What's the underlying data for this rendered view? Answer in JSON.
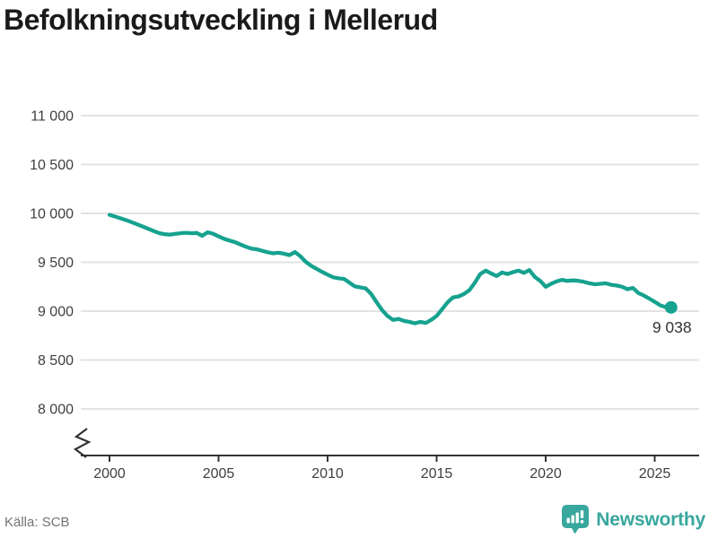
{
  "title": "Befolkningsutveckling i Mellerud",
  "source": "Källa: SCB",
  "logo": {
    "text": "Newsworthy",
    "icon": "bar-chart-speech-bubble"
  },
  "colors": {
    "line": "#16a28f",
    "end_dot": "#16a28f",
    "grid": "#e3e3e3",
    "axis": "#333333",
    "tick_text": "#3f3f3f",
    "end_label_text": "#333333",
    "title_text": "#1a1a1a",
    "source_text": "#737373",
    "logo_teal": "#38a79d",
    "background": "#ffffff"
  },
  "chart_data": {
    "type": "line",
    "title": "Befolkningsutveckling i Mellerud",
    "xlabel": "",
    "ylabel": "",
    "legend": "none",
    "grid": "horizontal-only",
    "axis_break": true,
    "xlim": [
      1998.7,
      2027.1
    ],
    "ylim": [
      8000,
      11000
    ],
    "y_ticks": [
      {
        "value": 8000,
        "label": "8 000"
      },
      {
        "value": 8500,
        "label": "8 500"
      },
      {
        "value": 9000,
        "label": "9 000"
      },
      {
        "value": 9500,
        "label": "9 500"
      },
      {
        "value": 10000,
        "label": "10 000"
      },
      {
        "value": 10500,
        "label": "10 500"
      },
      {
        "value": 11000,
        "label": "11 000"
      }
    ],
    "x_ticks": [
      {
        "value": 2000,
        "label": "2000"
      },
      {
        "value": 2005,
        "label": "2005"
      },
      {
        "value": 2010,
        "label": "2010"
      },
      {
        "value": 2015,
        "label": "2015"
      },
      {
        "value": 2020,
        "label": "2020"
      },
      {
        "value": 2025,
        "label": "2025"
      }
    ],
    "period": "quarterly",
    "end_point_label": "9 038",
    "end_value": 9038,
    "x": [
      2000,
      2000.25,
      2000.5,
      2000.75,
      2001,
      2001.25,
      2001.5,
      2001.75,
      2002,
      2002.25,
      2002.5,
      2002.75,
      2003,
      2003.25,
      2003.5,
      2003.75,
      2004,
      2004.25,
      2004.5,
      2004.75,
      2005,
      2005.25,
      2005.5,
      2005.75,
      2006,
      2006.25,
      2006.5,
      2006.75,
      2007,
      2007.25,
      2007.5,
      2007.75,
      2008,
      2008.25,
      2008.5,
      2008.75,
      2009,
      2009.25,
      2009.5,
      2009.75,
      2010,
      2010.25,
      2010.5,
      2010.75,
      2011,
      2011.25,
      2011.5,
      2011.75,
      2012,
      2012.25,
      2012.5,
      2012.75,
      2013,
      2013.25,
      2013.5,
      2013.75,
      2014,
      2014.25,
      2014.5,
      2014.75,
      2015,
      2015.25,
      2015.5,
      2015.75,
      2016,
      2016.25,
      2016.5,
      2016.75,
      2017,
      2017.25,
      2017.5,
      2017.75,
      2018,
      2018.25,
      2018.5,
      2018.75,
      2019,
      2019.25,
      2019.5,
      2019.75,
      2020,
      2020.25,
      2020.5,
      2020.75,
      2021,
      2021.25,
      2021.5,
      2021.75,
      2022,
      2022.25,
      2022.5,
      2022.75,
      2023,
      2023.25,
      2023.5,
      2023.75,
      2024,
      2024.25,
      2024.5,
      2024.75,
      2025,
      2025.25,
      2025.5,
      2025.75
    ],
    "values": [
      9985,
      9968,
      9950,
      9932,
      9912,
      9890,
      9868,
      9845,
      9822,
      9800,
      9788,
      9783,
      9790,
      9797,
      9802,
      9797,
      9800,
      9772,
      9806,
      9792,
      9765,
      9740,
      9722,
      9706,
      9683,
      9660,
      9640,
      9633,
      9617,
      9603,
      9592,
      9597,
      9588,
      9573,
      9605,
      9562,
      9505,
      9463,
      9432,
      9402,
      9373,
      9347,
      9336,
      9330,
      9292,
      9253,
      9243,
      9233,
      9175,
      9090,
      9010,
      8950,
      8910,
      8920,
      8900,
      8890,
      8875,
      8890,
      8880,
      8910,
      8950,
      9020,
      9090,
      9140,
      9150,
      9175,
      9215,
      9290,
      9380,
      9415,
      9385,
      9360,
      9395,
      9380,
      9398,
      9415,
      9392,
      9420,
      9350,
      9310,
      9250,
      9280,
      9305,
      9320,
      9310,
      9315,
      9310,
      9300,
      9285,
      9275,
      9280,
      9285,
      9270,
      9262,
      9250,
      9225,
      9238,
      9185,
      9160,
      9128,
      9095,
      9060,
      9042,
      9038
    ]
  }
}
